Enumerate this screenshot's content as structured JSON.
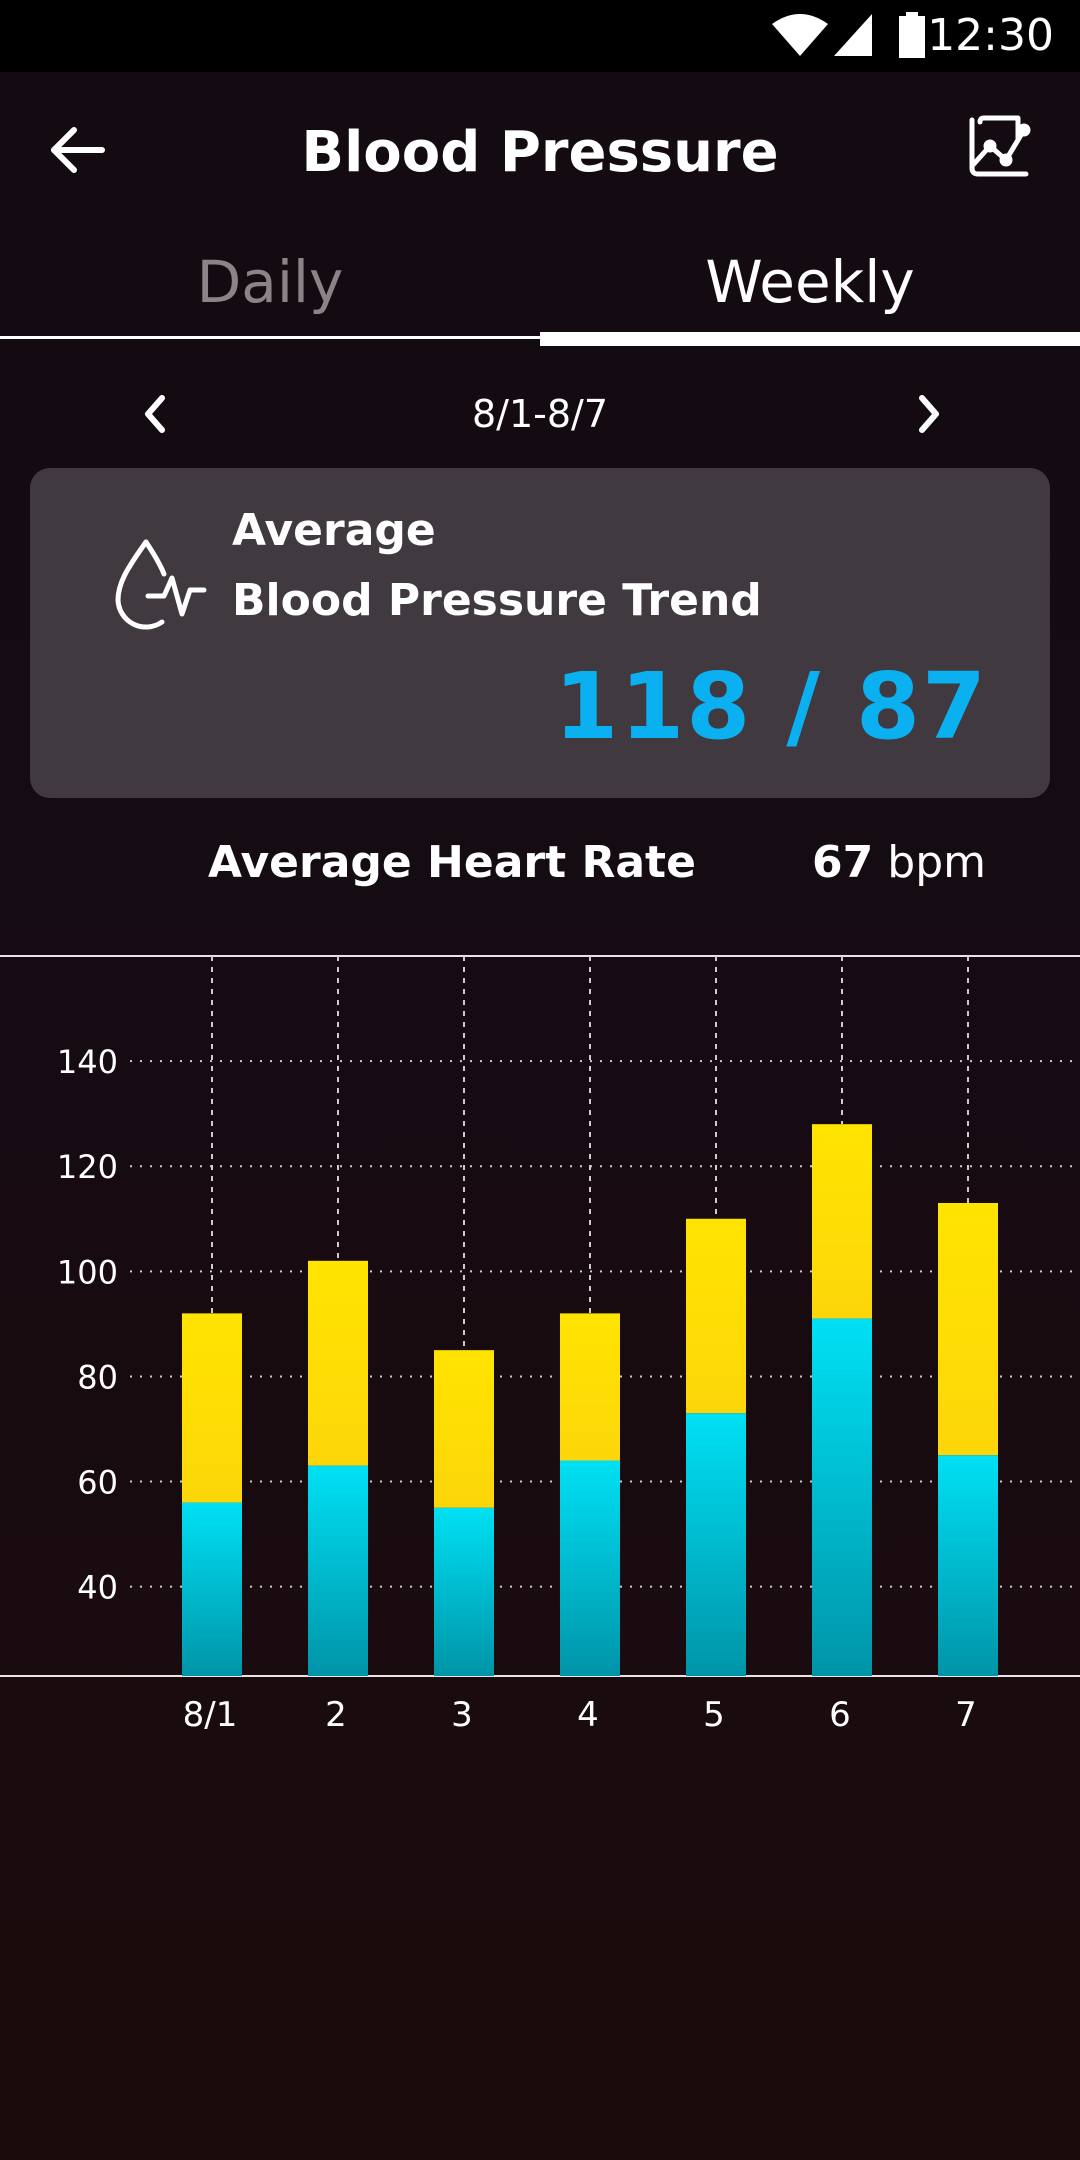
{
  "status_bar": {
    "time": "12:30"
  },
  "app_bar": {
    "title": "Blood Pressure"
  },
  "tabs": [
    {
      "label": "Daily",
      "active": false
    },
    {
      "label": "Weekly",
      "active": true
    }
  ],
  "date_nav": {
    "range": "8/1-8/7"
  },
  "summary": {
    "title_line1": "Average",
    "title_line2": "Blood Pressure Trend",
    "value": "118 / 87"
  },
  "heart_rate": {
    "label": "Average Heart Rate",
    "value": "67",
    "unit": "bpm"
  },
  "colors": {
    "systolic": "#ffe400",
    "diastolic": "#00d8ef",
    "accent": "#0ab0f0"
  },
  "chart_data": {
    "type": "bar",
    "categories": [
      "8/1",
      "2",
      "3",
      "4",
      "5",
      "6",
      "7"
    ],
    "series": [
      {
        "values": [
          56,
          63,
          55,
          64,
          73,
          91,
          65
        ]
      },
      {
        "values": [
          92,
          102,
          85,
          92,
          110,
          128,
          113
        ]
      }
    ],
    "yticks": [
      40,
      60,
      80,
      100,
      120,
      140
    ],
    "ylim": [
      23,
      160
    ],
    "grid": true
  }
}
